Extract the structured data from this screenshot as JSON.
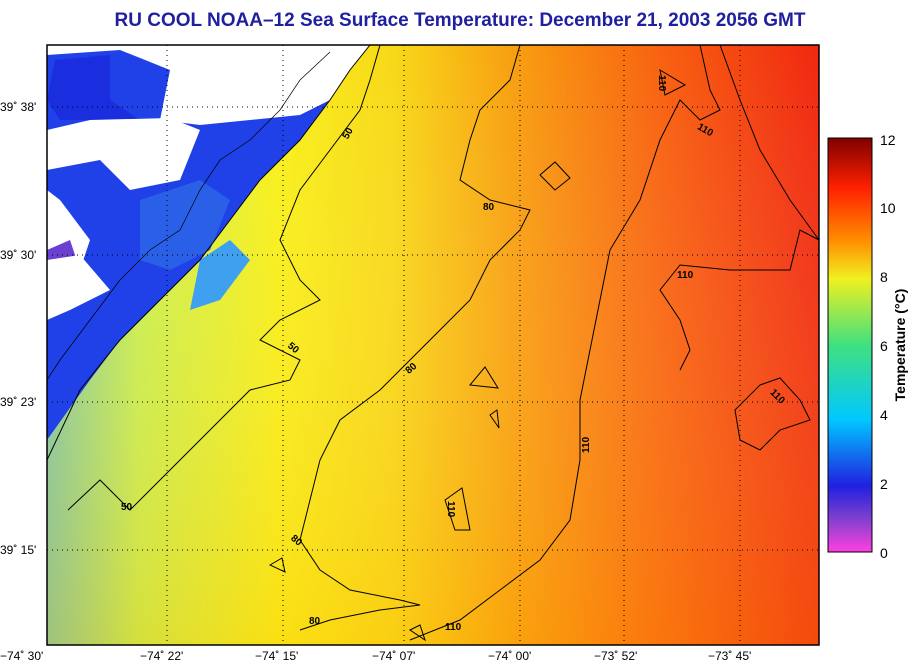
{
  "title": "RU COOL  NOAA–12  Sea Surface Temperature:  December 21, 2003 2056 GMT",
  "map": {
    "lat_ticks": [
      {
        "label": "39˚ 38'",
        "value": 39.633
      },
      {
        "label": "39˚ 30'",
        "value": 39.5
      },
      {
        "label": "39˚ 23'",
        "value": 39.383
      },
      {
        "label": "39˚ 15'",
        "value": 39.25
      }
    ],
    "lon_ticks": [
      {
        "label": "−74˚ 30'",
        "value": -74.5
      },
      {
        "label": "−74˚ 22'",
        "value": -74.367
      },
      {
        "label": "−74˚ 15'",
        "value": -74.25
      },
      {
        "label": "−74˚ 07'",
        "value": -74.117
      },
      {
        "label": "−74˚ 00'",
        "value": -74.0
      },
      {
        "label": "−73˚ 52'",
        "value": -73.867
      },
      {
        "label": "−73˚ 45'",
        "value": -73.75
      }
    ],
    "contour_labels": [
      "50",
      "50",
      "50",
      "80",
      "80",
      "80",
      "80",
      "110",
      "110",
      "110",
      "110",
      "110",
      "110",
      "110"
    ]
  },
  "colorbar": {
    "title": "Temperature (°C)",
    "ticks": [
      "0",
      "2",
      "4",
      "6",
      "8",
      "10",
      "12"
    ],
    "min": 0,
    "max": 12,
    "colors": [
      "#ff40e0",
      "#8040d0",
      "#2020e0",
      "#00c8ff",
      "#40e080",
      "#f0f020",
      "#ff9000",
      "#ff2000",
      "#800000"
    ]
  }
}
